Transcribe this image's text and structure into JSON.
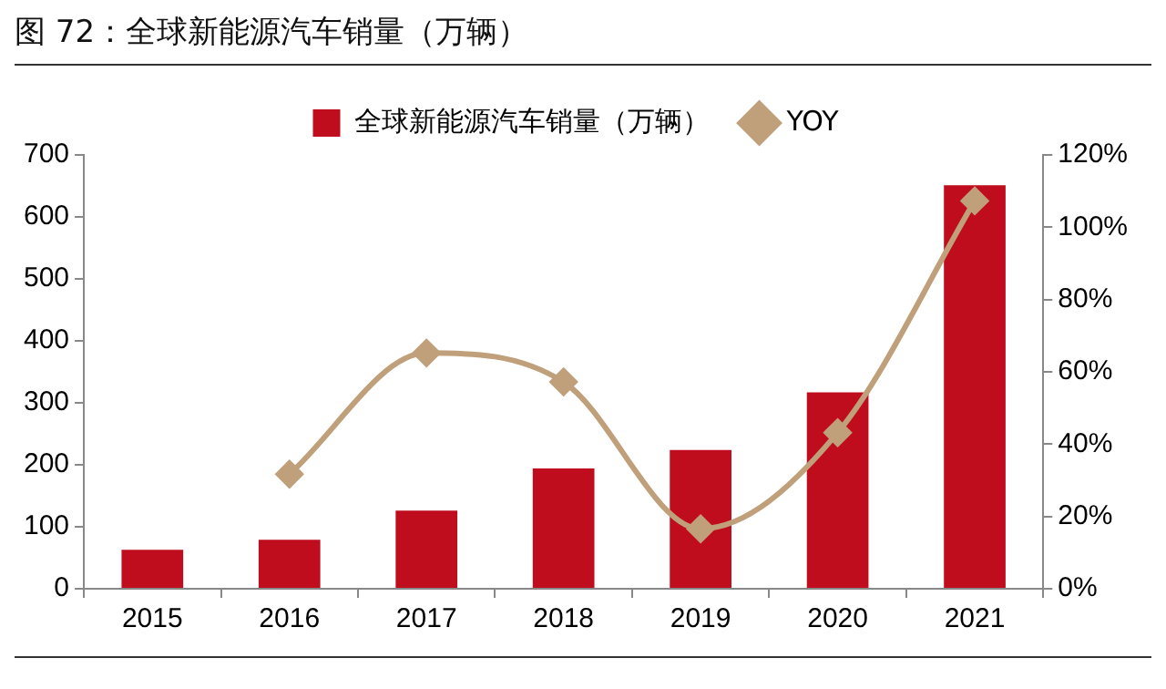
{
  "chart_data": {
    "type": "bar",
    "title": "图 72：全球新能源汽车销量（万辆）",
    "categories": [
      "2015",
      "2016",
      "2017",
      "2018",
      "2019",
      "2020",
      "2021"
    ],
    "series": [
      {
        "name": "全球新能源汽车销量（万辆）",
        "color": "#c00d1e",
        "values": [
          63,
          79,
          126,
          194,
          224,
          317,
          651
        ]
      },
      {
        "name": "YOY",
        "type": "line",
        "axis": "y2",
        "color": "#bfa07a",
        "values": [
          null,
          31.7,
          65.2,
          57.2,
          16.6,
          43.2,
          107.3
        ]
      }
    ],
    "ylim": [
      0,
      700
    ],
    "yticks": [
      0,
      100,
      200,
      300,
      400,
      500,
      600,
      700
    ],
    "y2lim": [
      0,
      120
    ],
    "y2ticks": [
      {
        "value": 0,
        "label": "0%"
      },
      {
        "value": 20,
        "label": "20%"
      },
      {
        "value": 40,
        "label": "40%"
      },
      {
        "value": 60,
        "label": "60%"
      },
      {
        "value": 80,
        "label": "80%"
      },
      {
        "value": 100,
        "label": "100%"
      },
      {
        "value": 120,
        "label": "120%"
      }
    ],
    "legend": "top",
    "marker": "diamond",
    "line_style": "solid",
    "grid": false
  }
}
